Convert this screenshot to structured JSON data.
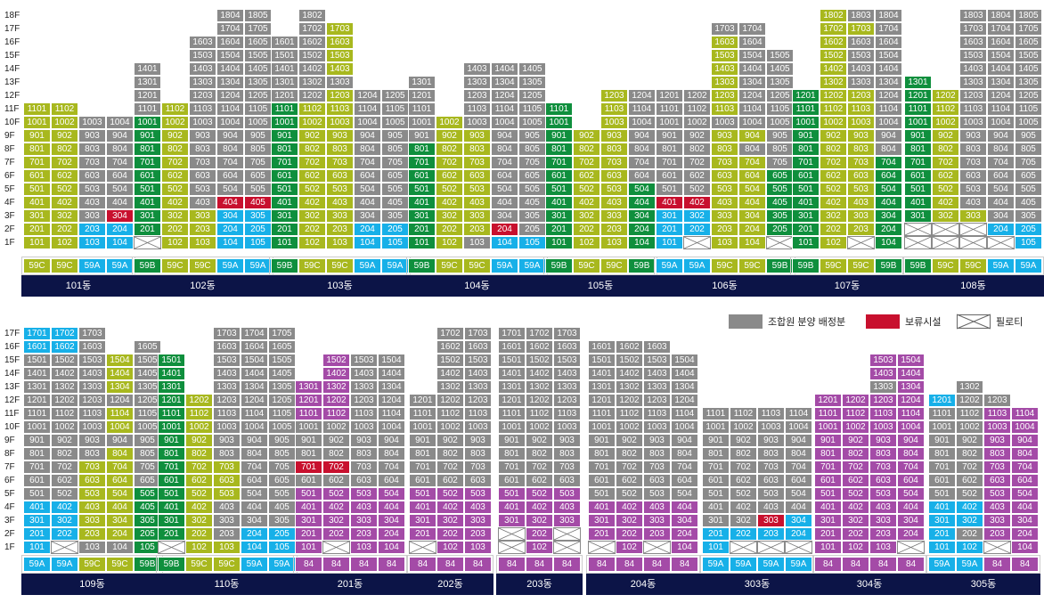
{
  "legend": {
    "union": "조합원 분양 배정분",
    "reserved": "보류시설",
    "piloti": "필로티"
  },
  "colors": {
    "union": "#8a8a8a",
    "59C": "#a8b81e",
    "59B": "#0f8f3d",
    "59A": "#17b0e8",
    "84": "#a44ba7",
    "reserved": "#c8102e",
    "label_bg": "#0c1447"
  },
  "rows": [
    {
      "floors": [
        "18F",
        "17F",
        "16F",
        "15F",
        "14F",
        "13F",
        "12F",
        "11F",
        "10F",
        "9F",
        "8F",
        "7F",
        "6F",
        "5F",
        "4F",
        "3F",
        "2F",
        "1F"
      ],
      "buildings": [
        {
          "label": "101동",
          "types": [
            "59C",
            "59C",
            "59A",
            "59A"
          ],
          "top": [
            11,
            11,
            10,
            10
          ],
          "map": {
            "l": [
              "11-1",
              "11-2",
              "10-1",
              "10-2",
              "9-1",
              "9-2",
              "8-1",
              "8-2",
              "7-1",
              "7-2",
              "6-1",
              "6-2",
              "5-1",
              "5-2",
              "4-1",
              "4-2",
              "3-1",
              "3-2",
              "2-1",
              "2-2",
              "1-1",
              "1-2"
            ],
            "c": [
              "2-3",
              "2-4",
              "1-3",
              "1-4"
            ],
            "r": [
              "3-4"
            ]
          }
        },
        {
          "label": "102동",
          "types": [
            "59B",
            "59C",
            "59C",
            "59A",
            "59A"
          ],
          "top": [
            14,
            11,
            16,
            18,
            18
          ],
          "map": {
            "d": [
              "10-1",
              "9-1",
              "8-1",
              "7-1",
              "6-1",
              "5-1",
              "4-1",
              "3-1",
              "2-1"
            ],
            "l": [
              "11-2",
              "10-2",
              "9-2",
              "8-2",
              "7-2",
              "6-2",
              "5-2",
              "4-2",
              "3-2",
              "2-2",
              "1-2",
              "3-3",
              "2-3",
              "1-3"
            ],
            "c": [
              "3-4",
              "3-5",
              "2-4",
              "2-5",
              "1-4",
              "1-5"
            ],
            "r": [
              "4-4",
              "4-5"
            ],
            "p": [
              "1-1"
            ]
          }
        },
        {
          "label": "103동",
          "types": [
            "59B",
            "59C",
            "59C",
            "59A",
            "59A"
          ],
          "top": [
            16,
            18,
            17,
            12,
            12
          ],
          "map": {
            "d": [
              "11-1",
              "10-1",
              "9-1",
              "8-1",
              "7-1",
              "6-1",
              "5-1",
              "4-1",
              "3-1",
              "2-1",
              "1-1"
            ],
            "l": [
              "16-3",
              "15-3",
              "14-3",
              "17-3",
              "12-3",
              "11-2",
              "11-3",
              "10-2",
              "10-3",
              "9-2",
              "9-3",
              "8-2",
              "8-3",
              "7-2",
              "7-3",
              "6-2",
              "6-3",
              "5-2",
              "5-3",
              "4-2",
              "4-3",
              "3-2",
              "3-3",
              "2-2",
              "2-3",
              "1-2",
              "1-3"
            ],
            "c": [
              "2-4",
              "2-5",
              "1-4",
              "1-5"
            ]
          }
        },
        {
          "label": "104동",
          "types": [
            "59B",
            "59C",
            "59C",
            "59A",
            "59A"
          ],
          "top": [
            13,
            10,
            14,
            14,
            14
          ],
          "map": {
            "d": [
              "8-1",
              "7-1",
              "6-1",
              "5-1",
              "4-1",
              "3-1",
              "2-1",
              "1-1"
            ],
            "l": [
              "10-2",
              "9-2",
              "8-2",
              "8-3",
              "7-2",
              "7-3",
              "6-2",
              "6-3",
              "5-2",
              "5-3",
              "4-2",
              "4-3",
              "3-2",
              "3-3",
              "2-2",
              "2-3",
              "1-2",
              "9-3"
            ],
            "c": [
              "1-4",
              "1-5"
            ],
            "r": [
              "2-4"
            ]
          }
        },
        {
          "label": "105동",
          "types": [
            "59B",
            "59C",
            "59C",
            "59B"
          ],
          "top": [
            11,
            9,
            12,
            12
          ],
          "map": {
            "d": [
              "11-1",
              "10-1",
              "9-1",
              "8-1",
              "7-1",
              "6-1",
              "5-1",
              "4-1",
              "3-1",
              "2-1",
              "1-1",
              "5-4",
              "4-4",
              "3-4",
              "2-4",
              "1-4"
            ],
            "l": [
              "9-2",
              "8-2",
              "7-2",
              "6-2",
              "5-2",
              "4-2",
              "3-2",
              "2-2",
              "1-2",
              "12-3",
              "11-3",
              "10-3",
              "9-3",
              "8-3",
              "7-3",
              "6-3",
              "5-3",
              "4-3",
              "3-3",
              "2-3",
              "1-3"
            ]
          }
        },
        {
          "label": "106동",
          "types": [
            "59A",
            "59A",
            "59C",
            "59C",
            "59B"
          ],
          "top": [
            12,
            12,
            17,
            17,
            15
          ],
          "map": {
            "c": [
              "3-1",
              "3-2",
              "2-1",
              "2-2",
              "1-1"
            ],
            "l": [
              "16-3",
              "15-3",
              "14-3",
              "13-3",
              "12-3",
              "11-3",
              "9-3",
              "9-4",
              "8-3",
              "7-3",
              "7-4",
              "6-3",
              "6-4",
              "5-3",
              "5-4",
              "4-3",
              "4-4",
              "3-3",
              "3-4",
              "2-3",
              "2-4",
              "1-3",
              "1-4"
            ],
            "d": [
              "6-5",
              "5-5",
              "4-5",
              "3-5",
              "2-5"
            ],
            "r": [
              "4-1",
              "4-2"
            ],
            "p": [
              "1-2",
              "1-5"
            ]
          }
        },
        {
          "label": "107동",
          "types": [
            "59B",
            "59C",
            "59C",
            "59B"
          ],
          "top": [
            12,
            18,
            18,
            18
          ],
          "map": {
            "d": [
              "12-1",
              "11-1",
              "10-1",
              "9-1",
              "8-1",
              "7-1",
              "6-1",
              "5-1",
              "4-1",
              "3-1",
              "2-1",
              "1-1",
              "7-4",
              "6-4",
              "5-4",
              "4-4",
              "3-4",
              "2-4",
              "1-4"
            ],
            "l": [
              "18-2",
              "17-2",
              "16-2",
              "15-2",
              "14-2",
              "13-2",
              "12-2",
              "12-3",
              "11-2",
              "11-3",
              "10-2",
              "10-3",
              "9-2",
              "9-3",
              "8-2",
              "8-3",
              "7-2",
              "7-3",
              "6-2",
              "6-3",
              "5-2",
              "5-3",
              "4-2",
              "4-3",
              "3-2",
              "3-3",
              "2-2",
              "2-3",
              "1-2",
              "17-3"
            ],
            "p": [
              "1-3"
            ]
          }
        },
        {
          "label": "108동",
          "types": [
            "59B",
            "59C",
            "59C",
            "59A",
            "59A"
          ],
          "top": [
            13,
            12,
            18,
            18,
            18
          ],
          "map": {
            "d": [
              "13-1",
              "12-1",
              "11-1",
              "10-1",
              "9-1",
              "8-1",
              "7-1",
              "6-1",
              "5-1",
              "4-1",
              "3-1"
            ],
            "l": [
              "12-2",
              "11-2",
              "10-2",
              "9-2",
              "8-2",
              "7-2",
              "6-2",
              "5-2",
              "4-2",
              "3-2",
              "3-3"
            ],
            "c": [
              "2-4",
              "2-5",
              "1-5"
            ],
            "p": [
              "1-1",
              "1-2",
              "1-3",
              "1-4",
              "2-1",
              "2-2",
              "2-3"
            ]
          }
        }
      ]
    },
    {
      "floors": [
        "17F",
        "16F",
        "15F",
        "14F",
        "13F",
        "12F",
        "11F",
        "10F",
        "9F",
        "8F",
        "7F",
        "6F",
        "5F",
        "4F",
        "3F",
        "2F",
        "1F"
      ],
      "buildings": [
        {
          "label": "109동",
          "types": [
            "59A",
            "59A",
            "59C",
            "59C",
            "59B"
          ],
          "top": [
            17,
            17,
            17,
            15,
            16
          ],
          "map": {
            "c": [
              "17-1",
              "17-2",
              "16-1",
              "16-2",
              "4-1",
              "4-2",
              "3-1",
              "3-2",
              "2-1",
              "2-2",
              "1-1"
            ],
            "l": [
              "15-4",
              "14-4",
              "13-4",
              "11-4",
              "10-4",
              "8-4",
              "7-3",
              "7-4",
              "6-3",
              "6-4",
              "5-3",
              "5-4",
              "4-3",
              "4-4",
              "3-3",
              "3-4",
              "2-3",
              "2-4"
            ],
            "d": [
              "5-5",
              "4-5",
              "3-5",
              "2-5",
              "1-5"
            ],
            "p": [
              "1-2"
            ]
          }
        },
        {
          "label": "110동",
          "types": [
            "59B",
            "59C",
            "59C",
            "59A",
            "59A"
          ],
          "top": [
            15,
            12,
            17,
            17,
            17
          ],
          "map": {
            "d": [
              "15-1",
              "14-1",
              "13-1",
              "12-1",
              "11-1",
              "10-1",
              "9-1",
              "8-1",
              "7-1",
              "6-1",
              "5-1",
              "4-1",
              "3-1",
              "2-1"
            ],
            "l": [
              "12-2",
              "11-2",
              "10-2",
              "9-2",
              "8-2",
              "7-2",
              "7-3",
              "6-2",
              "6-3",
              "5-2",
              "5-3",
              "4-2",
              "3-2",
              "2-2",
              "1-2",
              "1-3"
            ],
            "c": [
              "2-4",
              "2-5",
              "1-4",
              "1-5"
            ],
            "p": [
              "1-1"
            ]
          }
        },
        {
          "label": "201동",
          "types": [
            "84",
            "84",
            "84",
            "84"
          ],
          "top": [
            13,
            15,
            15,
            15
          ],
          "map": {
            "m": [
              "15-2",
              "14-2",
              "13-1",
              "13-2",
              "12-1",
              "12-2",
              "11-1",
              "11-2",
              "5-1",
              "5-2",
              "5-3",
              "5-4",
              "4-1",
              "4-2",
              "4-3",
              "4-4",
              "3-1",
              "3-2",
              "3-3",
              "3-4",
              "2-1",
              "2-2",
              "2-3",
              "2-4",
              "1-1",
              "1-3",
              "1-4"
            ],
            "r": [
              "7-1",
              "7-2"
            ],
            "p": [
              "1-2"
            ]
          }
        },
        {
          "label": "202동",
          "types": [
            "84",
            "84",
            "84"
          ],
          "top": [
            12,
            17,
            17
          ],
          "map": {
            "m": [
              "5-1",
              "5-2",
              "5-3",
              "4-1",
              "4-2",
              "4-3",
              "3-1",
              "3-2",
              "3-3",
              "2-1",
              "2-2",
              "2-3",
              "1-2",
              "1-3"
            ],
            "p": [
              "1-1"
            ]
          }
        },
        {
          "label": "203동",
          "types": [
            "84",
            "84",
            "84"
          ],
          "top": [
            17,
            17,
            17
          ],
          "map": {
            "m": [
              "5-1",
              "5-2",
              "5-3",
              "4-1",
              "4-2",
              "4-3",
              "3-1",
              "3-2",
              "3-3",
              "2-2",
              "1-2"
            ],
            "p": [
              "2-1",
              "2-3",
              "1-1",
              "1-3"
            ]
          }
        },
        {
          "label": "204동",
          "types": [
            "84",
            "84",
            "84",
            "84"
          ],
          "top": [
            16,
            16,
            16,
            15
          ],
          "map": {
            "m": [
              "4-1",
              "4-2",
              "4-3",
              "4-4",
              "3-1",
              "3-2",
              "3-3",
              "3-4",
              "2-1",
              "2-2",
              "2-3",
              "2-4",
              "1-2",
              "1-4"
            ],
            "p": [
              "1-1",
              "1-3"
            ]
          }
        },
        {
          "label": "303동",
          "types": [
            "59A",
            "59A",
            "59A",
            "59A"
          ],
          "top": [
            11,
            11,
            11,
            11
          ],
          "map": {
            "c": [
              "3-4",
              "2-1",
              "2-2",
              "2-3",
              "2-4",
              "1-1"
            ],
            "r": [
              "3-3"
            ],
            "p": [
              "1-2",
              "1-3",
              "1-4"
            ]
          }
        },
        {
          "label": "304동",
          "types": [
            "84",
            "84",
            "84",
            "84"
          ],
          "top": [
            12,
            12,
            15,
            15
          ],
          "map": {
            "m": [
              "15-3",
              "15-4",
              "14-3",
              "14-4",
              "13-4",
              "12-1",
              "12-2",
              "12-3",
              "12-4",
              "11-1",
              "11-2",
              "11-3",
              "11-4",
              "10-1",
              "10-2",
              "10-3",
              "10-4",
              "9-1",
              "9-2",
              "9-3",
              "9-4",
              "8-1",
              "8-2",
              "8-3",
              "8-4",
              "7-1",
              "7-2",
              "7-3",
              "7-4",
              "6-1",
              "6-2",
              "6-3",
              "6-4",
              "5-1",
              "5-2",
              "5-3",
              "5-4",
              "4-1",
              "4-2",
              "4-3",
              "4-4",
              "3-1",
              "3-2",
              "3-3",
              "3-4",
              "2-1",
              "2-2",
              "2-3",
              "2-4",
              "1-1",
              "1-2",
              "1-3"
            ],
            "p": [
              "1-4"
            ]
          }
        },
        {
          "label": "305동",
          "types": [
            "59A",
            "59A",
            "84",
            "84"
          ],
          "top": [
            12,
            13,
            12,
            11
          ],
          "map": {
            "c": [
              "12-1",
              "4-1",
              "4-2",
              "3-1",
              "3-2",
              "2-1",
              "1-1",
              "1-2"
            ],
            "m": [
              "11-3",
              "10-3",
              "9-3",
              "8-3",
              "7-3",
              "6-3",
              "5-3",
              "4-3",
              "3-3",
              "2-3",
              "11-4",
              "10-4",
              "9-4",
              "8-4",
              "7-4",
              "6-4",
              "5-4",
              "4-4",
              "3-4",
              "2-4",
              "1-4"
            ],
            "p": [
              "1-3"
            ]
          }
        }
      ]
    }
  ]
}
